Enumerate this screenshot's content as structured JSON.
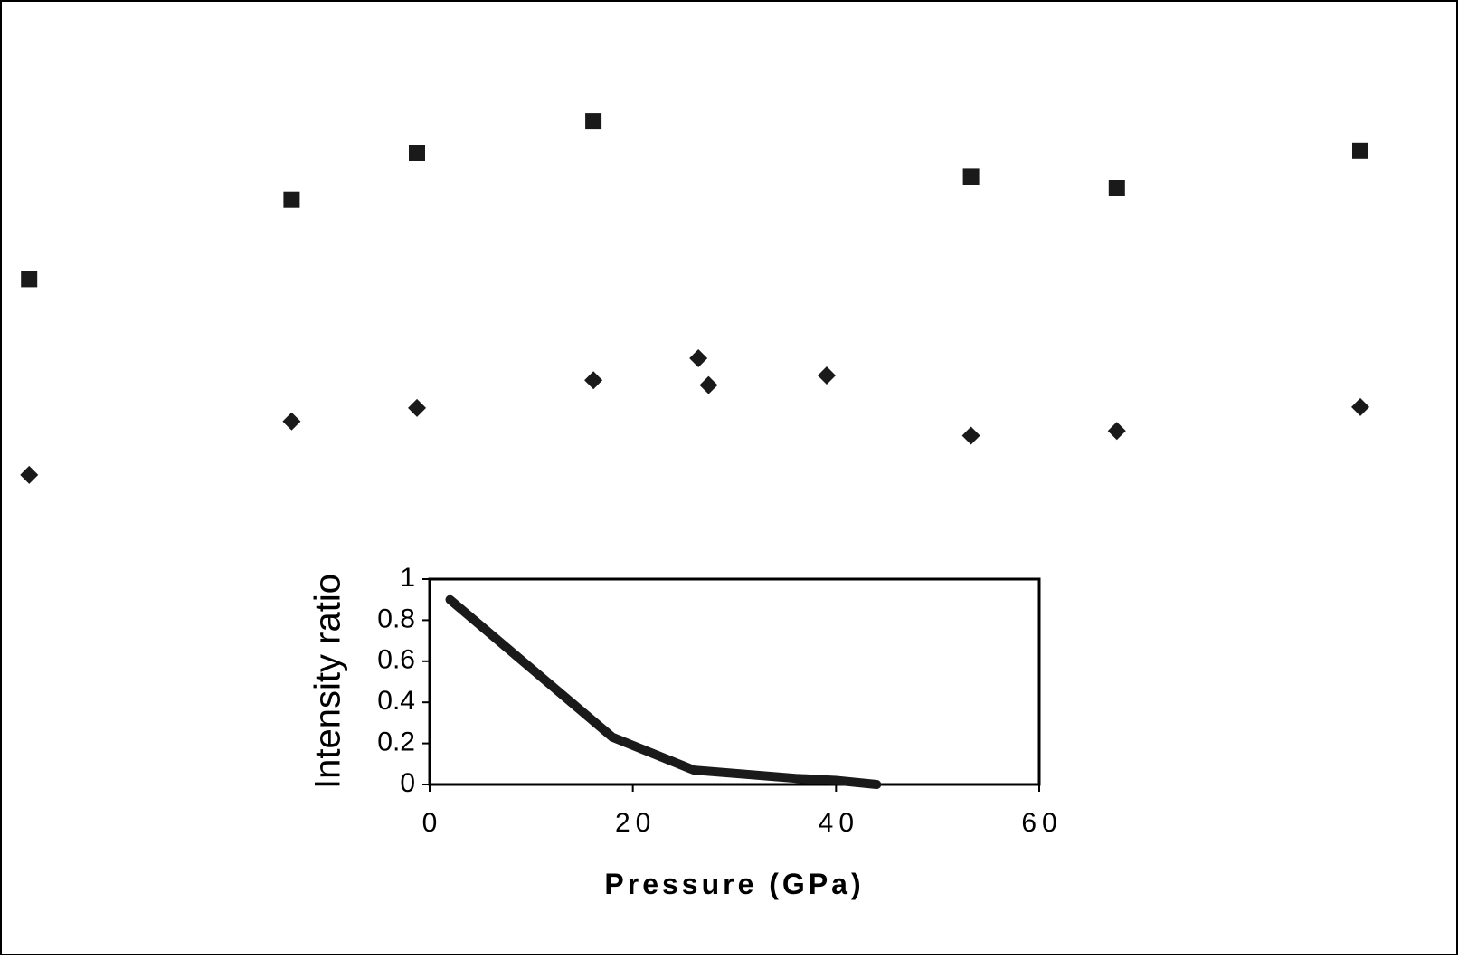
{
  "chart_data": [
    {
      "type": "scatter",
      "title": "",
      "xlabel": "",
      "ylabel": "",
      "axes_visible": false,
      "grid": false,
      "legend": "none",
      "xlim": [
        0,
        100
      ],
      "ylim": [
        0,
        100
      ],
      "series": [
        {
          "marker": "square",
          "x": [
            2,
            20,
            28.6,
            40.7,
            66.6,
            76.6,
            93.3
          ],
          "y": [
            70.8,
            79.1,
            84.0,
            87.3,
            81.5,
            80.3,
            84.2
          ]
        },
        {
          "marker": "diamond",
          "x": [
            2,
            20,
            28.6,
            40.7,
            47.9,
            48.6,
            56.7,
            66.6,
            76.6,
            93.3
          ],
          "y": [
            50.3,
            55.9,
            57.3,
            60.2,
            62.5,
            59.7,
            60.7,
            54.4,
            54.9,
            57.4
          ]
        }
      ],
      "colors": {
        "markers": "#1a1a1a",
        "frame": "#000000"
      }
    },
    {
      "type": "line",
      "title": "",
      "xlabel": "Pressure (GPa)",
      "ylabel": "Intensity ratio",
      "xlim": [
        0,
        60
      ],
      "ylim": [
        0,
        1
      ],
      "xticks": [
        "0",
        "20",
        "40",
        "60"
      ],
      "yticks": [
        "0",
        "0.2",
        "0.4",
        "0.6",
        "0.8",
        "1"
      ],
      "grid": false,
      "legend": "none",
      "series": [
        {
          "x": [
            2,
            18,
            26,
            36,
            40,
            44
          ],
          "y": [
            0.9,
            0.23,
            0.07,
            0.03,
            0.02,
            0.0
          ]
        }
      ],
      "colors": {
        "line": "#1a1a1a"
      }
    }
  ]
}
